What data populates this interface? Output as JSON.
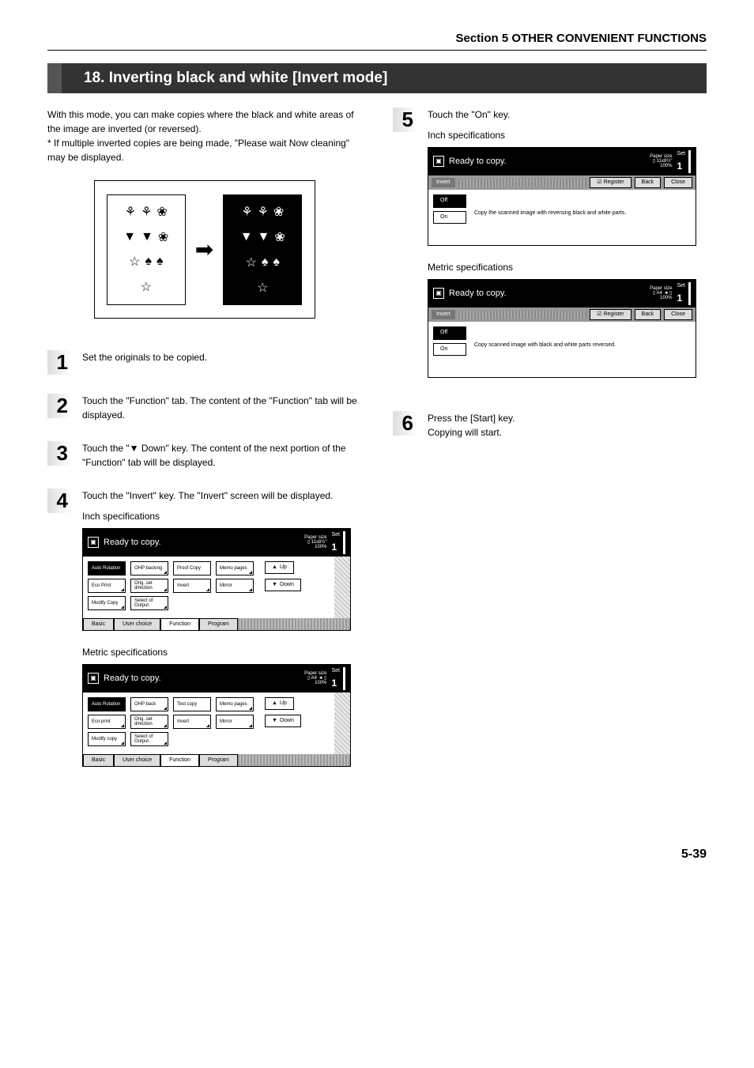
{
  "header": {
    "section": "Section 5  OTHER CONVENIENT FUNCTIONS"
  },
  "title": "18. Inverting black and white [Invert mode]",
  "intro": {
    "p1": "With this mode, you can make copies where the black and white areas of the image are inverted (or reversed).",
    "p2": "* If multiple inverted copies are being made, \"Please wait Now cleaning\" may be displayed."
  },
  "steps": {
    "s1": {
      "num": "1",
      "txt": "Set the originals to be copied."
    },
    "s2": {
      "num": "2",
      "txt": "Touch the \"Function\" tab. The content of the \"Function\" tab will be displayed."
    },
    "s3": {
      "num": "3",
      "txt": "Touch the \"▼ Down\" key. The content of the next portion of the \"Function\" tab will be displayed."
    },
    "s4": {
      "num": "4",
      "txt": "Touch the \"Invert\" key. The \"Invert\" screen will be displayed."
    },
    "s5": {
      "num": "5",
      "txt": "Touch the \"On\" key."
    },
    "s6": {
      "num": "6",
      "l1": "Press the [Start] key.",
      "l2": "Copying will start."
    }
  },
  "labels": {
    "inch": "Inch specifications",
    "metric": "Metric specifications"
  },
  "screen_common": {
    "ready": "Ready to copy.",
    "paper_size": "Paper size",
    "set": "Set",
    "count": "1",
    "zoom": "100%"
  },
  "fn_inch": {
    "size": "11x8½\"",
    "row1": [
      "Auto Rotation",
      "OHP backing",
      "Proof Copy",
      "Memo pages"
    ],
    "row2": [
      "Eco Print",
      "Orig. set direction",
      "Invert",
      "Mirror"
    ],
    "row3": [
      "Modify Copy",
      "Select of Output"
    ],
    "up": "Up",
    "down": "Down",
    "tabs": [
      "Basic",
      "User choice",
      "Function",
      "Program"
    ]
  },
  "fn_metric": {
    "size": "A4",
    "row1": [
      "Auto Rotation",
      "OHP back",
      "Test copy",
      "Memo pages"
    ],
    "row2": [
      "Eco print",
      "Orig. set direction",
      "Invert",
      "Mirror"
    ],
    "row3": [
      "Modify copy",
      "Select of Output"
    ],
    "up": "Up",
    "down": "Down",
    "tabs": [
      "Basic",
      "User choice",
      "Function",
      "Program"
    ]
  },
  "inv_inch": {
    "size": "11x8½\"",
    "bar_label": "Invert",
    "register": "Register",
    "back": "Back",
    "close": "Close",
    "off": "Off",
    "on": "On",
    "msg": "Copy the scanned image with reversing black and white parts."
  },
  "inv_metric": {
    "size": "A4",
    "bar_label": "Invert",
    "register": "Register",
    "back": "Back",
    "close": "Close",
    "off": "Off",
    "on": "On",
    "msg": "Copy scanned image with black and white parts reversed."
  },
  "page_num": "5-39"
}
